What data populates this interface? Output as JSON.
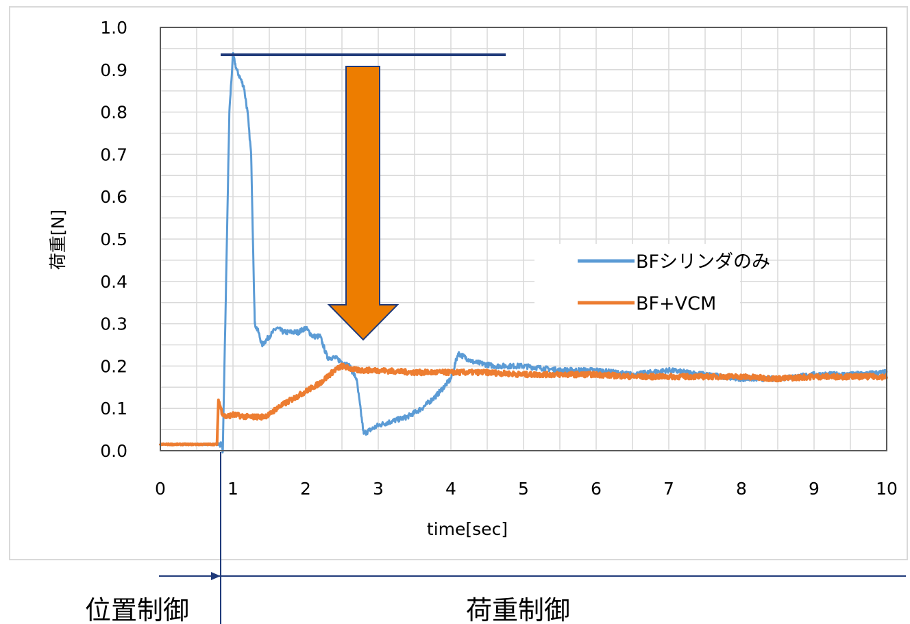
{
  "chart_data": {
    "type": "line",
    "title": "",
    "xlabel": "time[sec]",
    "ylabel": "荷重[N]",
    "xlim": [
      0,
      10
    ],
    "ylim": [
      0,
      1.0
    ],
    "x_ticks": [
      "0",
      "1",
      "2",
      "3",
      "4",
      "5",
      "6",
      "7",
      "8",
      "9",
      "10"
    ],
    "y_ticks": [
      "0.0",
      "0.1",
      "0.2",
      "0.3",
      "0.4",
      "0.5",
      "0.6",
      "0.7",
      "0.8",
      "0.9",
      "1.0"
    ],
    "grid": true,
    "legend_position": "center-right",
    "series": [
      {
        "name": "BFシリンダのみ",
        "color": "#5B9BD5",
        "points": [
          [
            0.0,
            0.015
          ],
          [
            0.84,
            0.015
          ],
          [
            0.86,
            0.0
          ],
          [
            0.9,
            0.35
          ],
          [
            0.95,
            0.8
          ],
          [
            1.0,
            0.935
          ],
          [
            1.05,
            0.9
          ],
          [
            1.1,
            0.88
          ],
          [
            1.15,
            0.86
          ],
          [
            1.2,
            0.8
          ],
          [
            1.25,
            0.7
          ],
          [
            1.3,
            0.3
          ],
          [
            1.35,
            0.28
          ],
          [
            1.4,
            0.25
          ],
          [
            1.5,
            0.27
          ],
          [
            1.6,
            0.29
          ],
          [
            1.7,
            0.28
          ],
          [
            1.8,
            0.28
          ],
          [
            1.9,
            0.28
          ],
          [
            2.0,
            0.29
          ],
          [
            2.1,
            0.27
          ],
          [
            2.2,
            0.27
          ],
          [
            2.3,
            0.22
          ],
          [
            2.4,
            0.22
          ],
          [
            2.5,
            0.21
          ],
          [
            2.6,
            0.2
          ],
          [
            2.7,
            0.17
          ],
          [
            2.8,
            0.04
          ],
          [
            2.9,
            0.05
          ],
          [
            3.0,
            0.06
          ],
          [
            3.2,
            0.07
          ],
          [
            3.4,
            0.08
          ],
          [
            3.6,
            0.1
          ],
          [
            3.8,
            0.13
          ],
          [
            4.0,
            0.17
          ],
          [
            4.1,
            0.23
          ],
          [
            4.3,
            0.21
          ],
          [
            4.6,
            0.2
          ],
          [
            5.0,
            0.2
          ],
          [
            5.5,
            0.19
          ],
          [
            6.0,
            0.19
          ],
          [
            6.5,
            0.18
          ],
          [
            7.0,
            0.19
          ],
          [
            7.5,
            0.18
          ],
          [
            8.0,
            0.17
          ],
          [
            8.5,
            0.17
          ],
          [
            9.0,
            0.18
          ],
          [
            9.5,
            0.18
          ],
          [
            10.0,
            0.185
          ]
        ]
      },
      {
        "name": "BF+VCM",
        "color": "#ED7D31",
        "points": [
          [
            0.0,
            0.015
          ],
          [
            0.78,
            0.015
          ],
          [
            0.8,
            0.12
          ],
          [
            0.85,
            0.09
          ],
          [
            0.9,
            0.08
          ],
          [
            1.0,
            0.085
          ],
          [
            1.2,
            0.08
          ],
          [
            1.4,
            0.08
          ],
          [
            1.5,
            0.085
          ],
          [
            1.6,
            0.1
          ],
          [
            1.8,
            0.12
          ],
          [
            2.0,
            0.14
          ],
          [
            2.2,
            0.16
          ],
          [
            2.4,
            0.19
          ],
          [
            2.5,
            0.2
          ],
          [
            2.7,
            0.19
          ],
          [
            3.0,
            0.19
          ],
          [
            3.5,
            0.185
          ],
          [
            4.0,
            0.185
          ],
          [
            4.5,
            0.185
          ],
          [
            5.0,
            0.18
          ],
          [
            5.5,
            0.18
          ],
          [
            6.0,
            0.18
          ],
          [
            6.5,
            0.175
          ],
          [
            7.0,
            0.175
          ],
          [
            7.5,
            0.175
          ],
          [
            8.0,
            0.175
          ],
          [
            8.5,
            0.17
          ],
          [
            9.0,
            0.175
          ],
          [
            9.5,
            0.175
          ],
          [
            10.0,
            0.175
          ]
        ]
      }
    ]
  },
  "phases": {
    "position_control": "位置制御",
    "load_control": "荷重制御"
  },
  "annotations": {
    "arrow_color": "#ED7D00",
    "peak_line_color": "#1F3A7A"
  }
}
